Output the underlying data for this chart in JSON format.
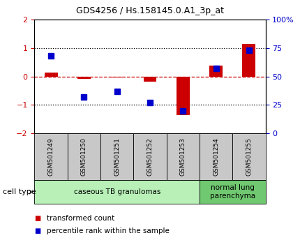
{
  "title": "GDS4256 / Hs.158145.0.A1_3p_at",
  "samples": [
    "GSM501249",
    "GSM501250",
    "GSM501251",
    "GSM501252",
    "GSM501253",
    "GSM501254",
    "GSM501255"
  ],
  "transformed_count": [
    0.15,
    -0.08,
    -0.03,
    -0.18,
    -1.35,
    0.38,
    1.15
  ],
  "percentile_rank": [
    68,
    32,
    37,
    27,
    20,
    57,
    73
  ],
  "red_color": "#CC0000",
  "blue_color": "#0000CC",
  "ylim_left": [
    -2,
    2
  ],
  "ylim_right": [
    0,
    100
  ],
  "y_ticks_left": [
    -2,
    -1,
    0,
    1,
    2
  ],
  "y_ticks_right": [
    0,
    25,
    50,
    75,
    100
  ],
  "cell_type_groups": [
    {
      "label": "caseous TB granulomas",
      "indices": [
        0,
        1,
        2,
        3,
        4
      ],
      "color": "#b8f0b8"
    },
    {
      "label": "normal lung\nparenchyma",
      "indices": [
        5,
        6
      ],
      "color": "#70c870"
    }
  ],
  "legend_items": [
    {
      "label": "transformed count",
      "color": "#CC0000"
    },
    {
      "label": "percentile rank within the sample",
      "color": "#0000CC"
    }
  ],
  "cell_type_label": "cell type",
  "bar_width": 0.4,
  "marker_size": 6,
  "sample_box_color": "#c8c8c8",
  "bg_color": "white"
}
